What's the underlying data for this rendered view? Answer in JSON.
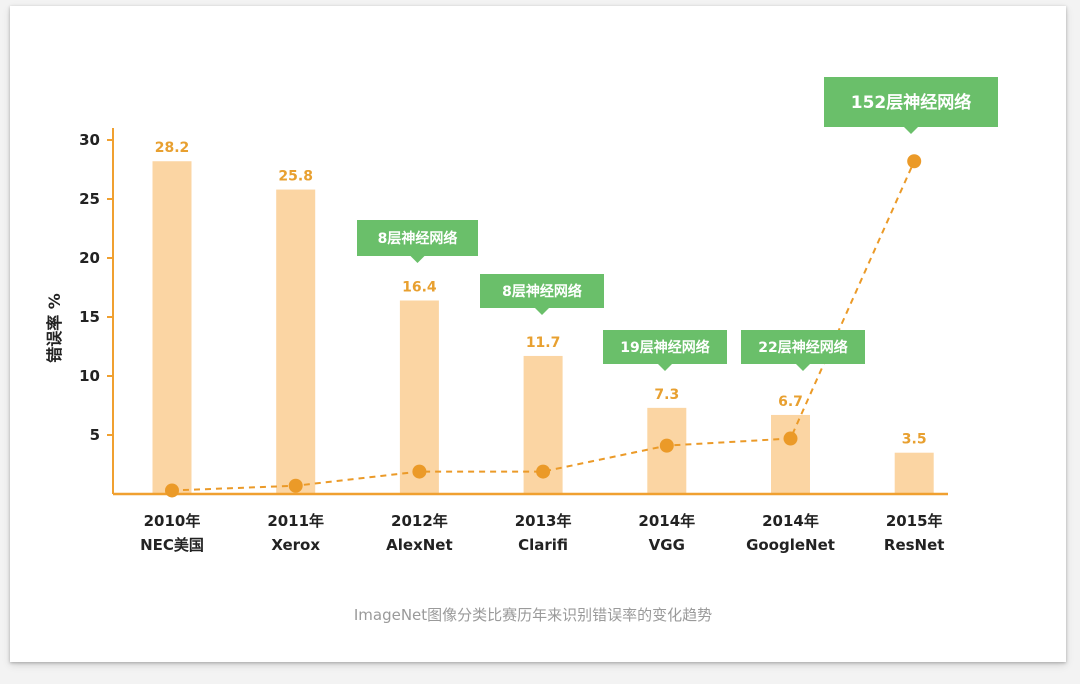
{
  "chart_data": {
    "type": "bar",
    "ylabel": "错误率 %",
    "ylim": [
      0,
      30
    ],
    "yticks": [
      5,
      10,
      15,
      20,
      25,
      30
    ],
    "categories": [
      [
        "2010年",
        "NEC美国"
      ],
      [
        "2011年",
        "Xerox"
      ],
      [
        "2012年",
        "AlexNet"
      ],
      [
        "2013年",
        "Clarifi"
      ],
      [
        "2014年",
        "VGG"
      ],
      [
        "2014年",
        "GoogleNet"
      ],
      [
        "2015年",
        "ResNet"
      ]
    ],
    "bar_values": [
      28.2,
      25.8,
      16.4,
      11.7,
      7.3,
      6.7,
      3.5
    ],
    "bar_value_labels": [
      "28.2",
      "25.8",
      "16.4",
      "11.7",
      "7.3",
      "6.7",
      "3.5"
    ],
    "layer_line_values": [
      0.3,
      0.7,
      1.9,
      1.9,
      4.1,
      4.7,
      28.2
    ],
    "annotations": [
      {
        "index": 2,
        "text": "8层神经网络"
      },
      {
        "index": 3,
        "text": "8层神经网络"
      },
      {
        "index": 4,
        "text": "19层神经网络"
      },
      {
        "index": 5,
        "text": "22层神经网络"
      },
      {
        "index": 6,
        "text": "152层神经网络"
      }
    ],
    "caption": "ImageNet图像分类比赛历年来识别错误率的变化趋势",
    "grid": false,
    "colors": {
      "bar": "#fbd5a3",
      "axis": "#f0a030",
      "value_label": "#e8a030",
      "line": "#eb9a28",
      "annotation": "#6abf6a"
    }
  }
}
